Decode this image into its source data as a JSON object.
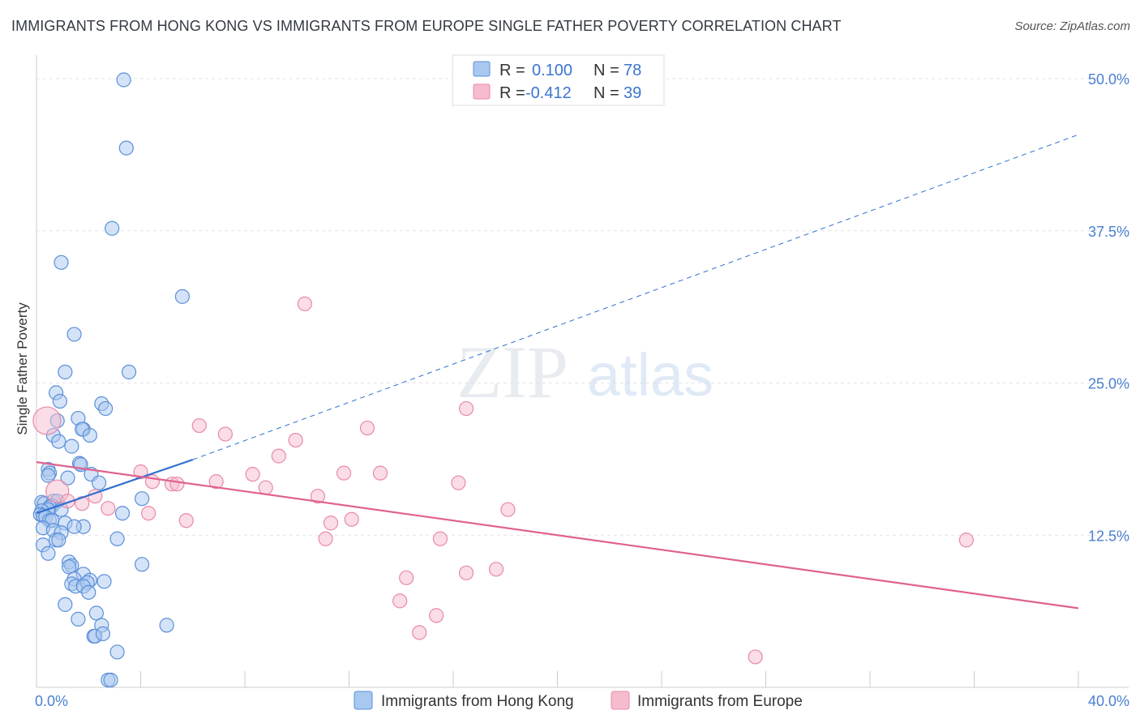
{
  "title": "IMMIGRANTS FROM HONG KONG VS IMMIGRANTS FROM EUROPE SINGLE FATHER POVERTY CORRELATION CHART",
  "source": "Source: ZipAtlas.com",
  "watermark": {
    "zip": "ZIP",
    "atlas": "atlas"
  },
  "colors": {
    "blue_fill": "#a9c8f0",
    "blue_stroke": "#5b8fd8",
    "blue_line": "#2f6fce",
    "pink_fill": "#f6bccd",
    "pink_stroke": "#e88aa7",
    "pink_line": "#e0628f",
    "tick": "#4a7fd1",
    "grid": "#e3e3e3"
  },
  "legend": {
    "r_label": "R =",
    "n_label": "N =",
    "rows": [
      {
        "r": "0.100",
        "n": "78",
        "color": "#a9c8f0"
      },
      {
        "r": "-0.412",
        "n": "39",
        "color": "#f6bccd"
      }
    ]
  },
  "bottom_legend": [
    "Immigrants from Hong Kong",
    "Immigrants from Europe"
  ],
  "chart_data": {
    "type": "scatter",
    "title": "IMMIGRANTS FROM HONG KONG VS IMMIGRANTS FROM EUROPE SINGLE FATHER POVERTY CORRELATION CHART",
    "xlabel": "",
    "ylabel": "Single Father Poverty",
    "xlim": [
      0,
      40
    ],
    "ylim": [
      0,
      50
    ],
    "x_tick_labels": [
      "0.0%",
      "40.0%"
    ],
    "y_ticks": [
      12.5,
      25.0,
      37.5,
      50.0
    ],
    "y_tick_labels": [
      "12.5%",
      "25.0%",
      "37.5%",
      "50.0%"
    ],
    "series": [
      {
        "name": "Immigrants from Hong Kong",
        "r": 0.1,
        "n": 78,
        "points": [
          [
            3.35,
            49.9
          ],
          [
            3.45,
            44.3
          ],
          [
            2.9,
            37.7
          ],
          [
            0.95,
            34.9
          ],
          [
            5.6,
            32.1
          ],
          [
            1.45,
            29.0
          ],
          [
            3.55,
            25.9
          ],
          [
            1.1,
            25.9
          ],
          [
            0.75,
            24.2
          ],
          [
            0.9,
            23.5
          ],
          [
            2.5,
            23.3
          ],
          [
            2.65,
            22.9
          ],
          [
            1.6,
            22.1
          ],
          [
            0.8,
            21.9
          ],
          [
            1.8,
            21.2
          ],
          [
            1.75,
            21.2
          ],
          [
            2.05,
            20.7
          ],
          [
            0.65,
            20.7
          ],
          [
            0.85,
            20.2
          ],
          [
            1.35,
            19.8
          ],
          [
            1.65,
            18.4
          ],
          [
            1.7,
            18.3
          ],
          [
            0.45,
            17.9
          ],
          [
            0.5,
            17.6
          ],
          [
            2.1,
            17.5
          ],
          [
            0.45,
            17.4
          ],
          [
            1.2,
            17.2
          ],
          [
            2.4,
            16.8
          ],
          [
            4.05,
            15.5
          ],
          [
            0.2,
            15.2
          ],
          [
            0.3,
            15.1
          ],
          [
            0.65,
            15.3
          ],
          [
            0.8,
            15.3
          ],
          [
            0.6,
            14.9
          ],
          [
            0.5,
            14.8
          ],
          [
            0.95,
            14.6
          ],
          [
            0.45,
            14.6
          ],
          [
            0.2,
            14.5
          ],
          [
            0.15,
            14.2
          ],
          [
            0.25,
            14.1
          ],
          [
            0.35,
            14.0
          ],
          [
            0.5,
            13.7
          ],
          [
            0.6,
            13.7
          ],
          [
            3.3,
            14.3
          ],
          [
            1.1,
            13.5
          ],
          [
            1.8,
            13.2
          ],
          [
            1.45,
            13.2
          ],
          [
            0.25,
            13.1
          ],
          [
            0.65,
            12.9
          ],
          [
            0.95,
            12.7
          ],
          [
            0.75,
            12.1
          ],
          [
            3.1,
            12.2
          ],
          [
            0.25,
            11.7
          ],
          [
            0.85,
            12.1
          ],
          [
            0.45,
            11.0
          ],
          [
            1.25,
            10.3
          ],
          [
            1.35,
            10.0
          ],
          [
            4.05,
            10.1
          ],
          [
            1.25,
            9.9
          ],
          [
            1.8,
            9.3
          ],
          [
            1.45,
            8.9
          ],
          [
            2.05,
            8.8
          ],
          [
            1.35,
            8.5
          ],
          [
            2.6,
            8.7
          ],
          [
            1.5,
            8.3
          ],
          [
            1.95,
            8.6
          ],
          [
            1.8,
            8.3
          ],
          [
            2.0,
            7.8
          ],
          [
            1.1,
            6.8
          ],
          [
            2.3,
            6.1
          ],
          [
            1.6,
            5.6
          ],
          [
            5.0,
            5.1
          ],
          [
            2.5,
            5.1
          ],
          [
            2.2,
            4.2
          ],
          [
            2.25,
            4.2
          ],
          [
            2.55,
            4.4
          ],
          [
            3.1,
            2.9
          ],
          [
            2.75,
            0.6
          ],
          [
            2.85,
            0.6
          ]
        ]
      },
      {
        "name": "Immigrants from Europe",
        "r": -0.412,
        "n": 39,
        "points": [
          [
            10.3,
            31.5
          ],
          [
            16.5,
            22.9
          ],
          [
            6.25,
            21.5
          ],
          [
            12.7,
            21.3
          ],
          [
            7.25,
            20.8
          ],
          [
            9.95,
            20.3
          ],
          [
            0.4,
            21.9
          ],
          [
            9.3,
            19.0
          ],
          [
            4.0,
            17.7
          ],
          [
            11.8,
            17.6
          ],
          [
            13.2,
            17.6
          ],
          [
            8.3,
            17.5
          ],
          [
            4.45,
            16.9
          ],
          [
            6.9,
            16.9
          ],
          [
            16.2,
            16.8
          ],
          [
            5.2,
            16.7
          ],
          [
            5.4,
            16.7
          ],
          [
            8.8,
            16.4
          ],
          [
            0.8,
            16.1
          ],
          [
            2.25,
            15.7
          ],
          [
            10.8,
            15.7
          ],
          [
            1.2,
            15.3
          ],
          [
            1.75,
            15.1
          ],
          [
            2.75,
            14.7
          ],
          [
            18.1,
            14.6
          ],
          [
            4.3,
            14.3
          ],
          [
            5.75,
            13.7
          ],
          [
            11.3,
            13.5
          ],
          [
            12.1,
            13.8
          ],
          [
            15.5,
            12.2
          ],
          [
            11.1,
            12.2
          ],
          [
            16.5,
            9.4
          ],
          [
            35.7,
            12.1
          ],
          [
            17.65,
            9.7
          ],
          [
            14.2,
            9.0
          ],
          [
            13.95,
            7.1
          ],
          [
            15.35,
            5.9
          ],
          [
            14.7,
            4.5
          ],
          [
            27.6,
            2.5
          ]
        ]
      }
    ],
    "trend_lines": [
      {
        "series": "Immigrants from Hong Kong",
        "solid": [
          [
            0.0,
            14.3
          ],
          [
            6.0,
            18.7
          ]
        ],
        "dashed": [
          [
            6.0,
            18.7
          ],
          [
            40.0,
            45.4
          ]
        ]
      },
      {
        "series": "Immigrants from Europe",
        "solid": [
          [
            0.0,
            18.5
          ],
          [
            40.0,
            6.5
          ]
        ]
      }
    ]
  }
}
